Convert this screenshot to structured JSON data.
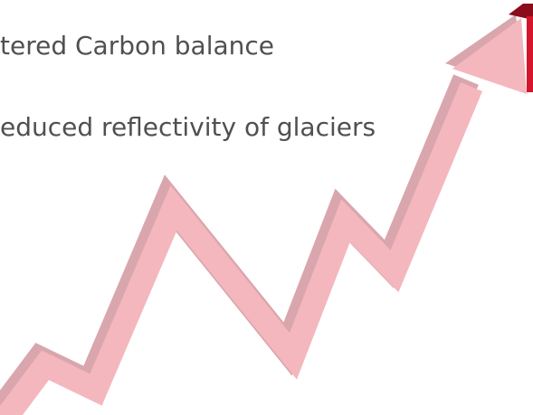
{
  "bullets": [
    "tered Carbon balance",
    "educed reflectivity of glaciers"
  ]
}
